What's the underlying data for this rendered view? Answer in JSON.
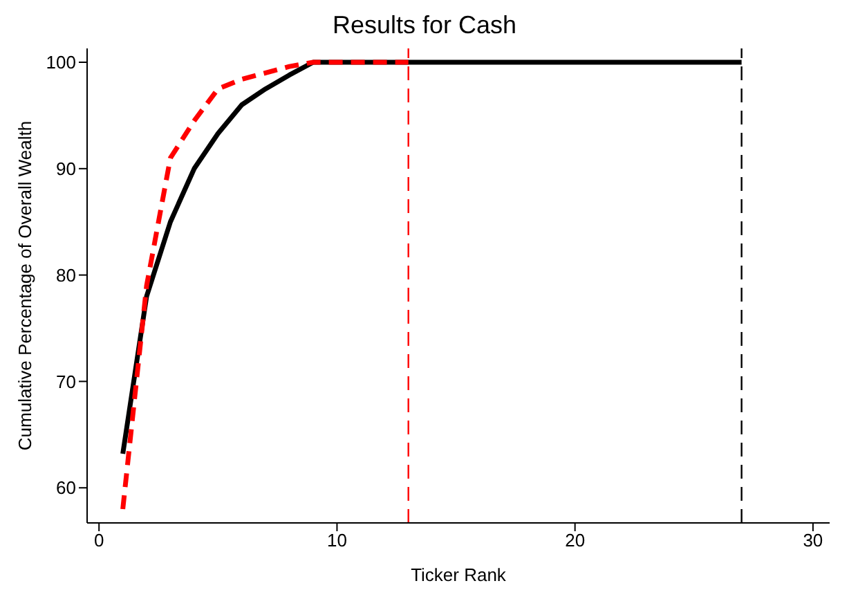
{
  "chart_data": {
    "type": "line",
    "title": "Results for Cash",
    "xlabel": "Ticker Rank",
    "ylabel": "Cumulative Percentage of Overall Wealth",
    "xlim": [
      -0.5,
      30.7
    ],
    "xticks": [
      0,
      10,
      20,
      30
    ],
    "ylim": [
      56.7,
      101.3
    ],
    "yticks": [
      60,
      70,
      80,
      90,
      100
    ],
    "grid": false,
    "legend": false,
    "marker": "none",
    "series": [
      {
        "color": "#000000",
        "line_style": "solid",
        "x": [
          1,
          2,
          3,
          4,
          5,
          6,
          7,
          8,
          9,
          10,
          11,
          12,
          13,
          14,
          15,
          16,
          17,
          18,
          19,
          20,
          21,
          22,
          23,
          24,
          25,
          26,
          27
        ],
        "values": [
          63.2,
          78,
          85,
          90,
          93.3,
          96,
          97.5,
          98.8,
          100,
          100,
          100,
          100,
          100,
          100,
          100,
          100,
          100,
          100,
          100,
          100,
          100,
          100,
          100,
          100,
          100,
          100,
          100
        ]
      },
      {
        "color": "#ff0000",
        "line_style": "dashed",
        "x": [
          1,
          2,
          3,
          4,
          5,
          6,
          7,
          8,
          9,
          10,
          11,
          12,
          13
        ],
        "values": [
          58,
          79,
          91,
          94.5,
          97.5,
          98.4,
          99,
          99.6,
          100,
          100,
          100,
          100,
          100
        ]
      }
    ],
    "ref_lines": [
      {
        "axis": "x",
        "value": 13,
        "color": "#ff0000",
        "line_style": "dashed"
      },
      {
        "axis": "x",
        "value": 27,
        "color": "#000000",
        "line_style": "dashed"
      }
    ]
  }
}
